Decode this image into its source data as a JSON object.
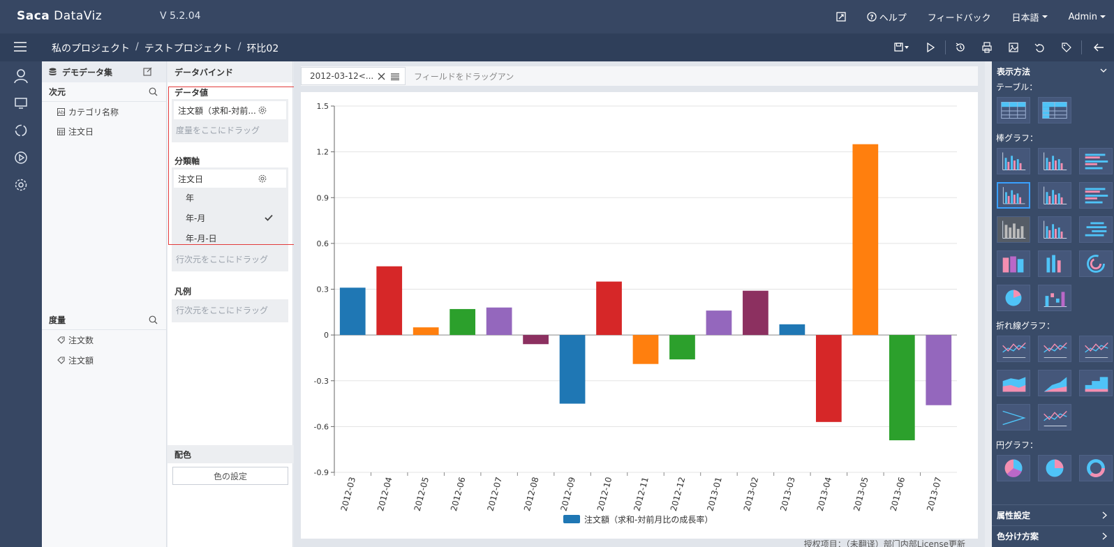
{
  "app": {
    "logo_a": "Saca",
    "logo_b": " DataViz",
    "version": "V 5.2.04"
  },
  "topnav": {
    "help": "ヘルプ",
    "feedback": "フィードバック",
    "language": "日本語",
    "user": "Admin"
  },
  "breadcrumb": {
    "items": [
      "私のプロジェクト",
      "テストプロジェクト",
      "环比02"
    ],
    "sep": "/"
  },
  "dataset": {
    "title": "デモデータ集",
    "dimension_label": "次元",
    "dimensions": [
      "カテゴリ名称",
      "注文日"
    ],
    "measure_label": "度量",
    "measures": [
      "注文数",
      "注文額"
    ]
  },
  "bind": {
    "title": "データバインド",
    "value_label": "データ値",
    "value_chip": "注文額（求和-対前...",
    "value_hint": "度量をここにドラッグ",
    "axis_label": "分類軸",
    "axis_chip": "注文日",
    "axis_options": [
      "年",
      "年-月",
      "年-月-日"
    ],
    "axis_selected": "年-月",
    "axis_hint": "行次元をここにドラッグ",
    "legend_label": "凡例",
    "legend_hint": "行次元をここにドラッグ",
    "color_label": "配色",
    "color_button": "色の設定"
  },
  "filter": {
    "chip": "2012-03-12<...",
    "hint": "フィールドをドラッグアン"
  },
  "license_text": "授权项目：（未翻译）部门内部License更新",
  "right_panel": {
    "title": "表示方法",
    "categories": {
      "table": "テーブル：",
      "bar": "棒グラフ：",
      "line": "折れ線グラフ：",
      "pie": "円グラフ："
    },
    "footer": [
      "属性設定",
      "色分け方案"
    ]
  },
  "chart_data": {
    "type": "bar",
    "categories": [
      "2012-03",
      "2012-04",
      "2012-05",
      "2012-06",
      "2012-07",
      "2012-08",
      "2012-09",
      "2012-10",
      "2012-11",
      "2012-12",
      "2013-01",
      "2013-02",
      "2013-03",
      "2013-04",
      "2013-05",
      "2013-06",
      "2013-07"
    ],
    "series": [
      {
        "name": "注文額（求和-対前月比の成長率）",
        "values": [
          0.31,
          0.45,
          0.05,
          0.17,
          0.18,
          -0.06,
          -0.45,
          0.35,
          -0.19,
          -0.16,
          0.16,
          0.29,
          0.07,
          -0.57,
          1.25,
          -0.69,
          -0.46
        ]
      }
    ],
    "bar_colors": [
      "#1f77b4",
      "#d62728",
      "#ff7f0e",
      "#2ca02c",
      "#9467bd",
      "#8c3060",
      "#1f77b4",
      "#d62728",
      "#ff7f0e",
      "#2ca02c",
      "#9467bd",
      "#8c3060",
      "#1f77b4",
      "#d62728",
      "#ff7f0e",
      "#2ca02c",
      "#9467bd"
    ],
    "yticks": [
      "1.5",
      "1.2",
      "0.9",
      "0.6",
      "0.3",
      "0",
      "-0.3",
      "-0.6",
      "-0.9"
    ],
    "ylim": [
      -0.9,
      1.5
    ],
    "legend_color": "#1f77b4",
    "legend_position": "bottom",
    "grid": true
  }
}
